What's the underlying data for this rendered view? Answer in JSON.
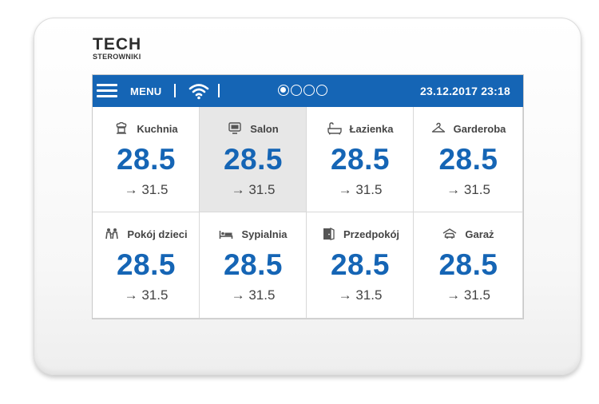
{
  "logo": {
    "title": "TECH",
    "subtitle": "STEROWNIKI"
  },
  "topbar": {
    "menu_label": "MENU",
    "datetime": "23.12.2017 23:18",
    "pages": 4,
    "active_page": 1,
    "color": "#1565b5"
  },
  "arrow_symbol": "→",
  "tiles": [
    {
      "name": "Kuchnia",
      "icon": "kitchen-icon",
      "temp": "28.5",
      "setpoint": "31.5",
      "selected": false
    },
    {
      "name": "Salon",
      "icon": "tv-icon",
      "temp": "28.5",
      "setpoint": "31.5",
      "selected": true
    },
    {
      "name": "Łazienka",
      "icon": "bathtub-icon",
      "temp": "28.5",
      "setpoint": "31.5",
      "selected": false
    },
    {
      "name": "Garderoba",
      "icon": "hanger-icon",
      "temp": "28.5",
      "setpoint": "31.5",
      "selected": false
    },
    {
      "name": "Pokój dzieci",
      "icon": "children-icon",
      "temp": "28.5",
      "setpoint": "31.5",
      "selected": false
    },
    {
      "name": "Sypialnia",
      "icon": "bed-icon",
      "temp": "28.5",
      "setpoint": "31.5",
      "selected": false
    },
    {
      "name": "Przedpokój",
      "icon": "door-icon",
      "temp": "28.5",
      "setpoint": "31.5",
      "selected": false
    },
    {
      "name": "Garaż",
      "icon": "car-icon",
      "temp": "28.5",
      "setpoint": "31.5",
      "selected": false
    }
  ]
}
